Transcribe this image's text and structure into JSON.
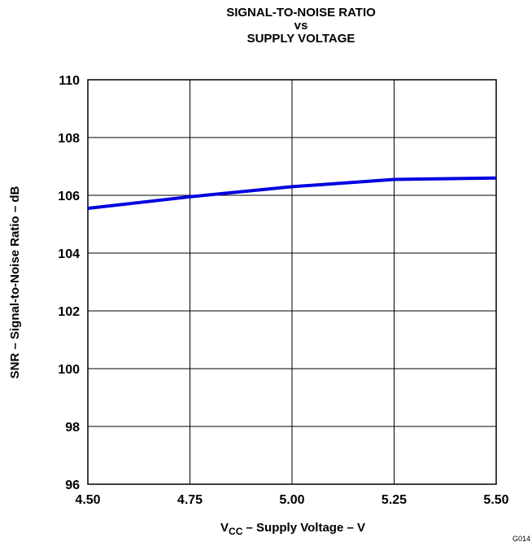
{
  "chart_data": {
    "type": "line",
    "title_lines": [
      "SIGNAL-TO-NOISE RATIO",
      "vs",
      "SUPPLY VOLTAGE"
    ],
    "xlabel_main": "V",
    "xlabel_sub": "CC",
    "xlabel_rest": " – Supply Voltage – V",
    "ylabel": "SNR – Signal-to-Noise Ratio – dB",
    "figure_code": "G014",
    "xlim": [
      4.5,
      5.5
    ],
    "ylim": [
      96,
      110
    ],
    "x_ticks": [
      "4.50",
      "4.75",
      "5.00",
      "5.25",
      "5.50"
    ],
    "y_ticks": [
      "110",
      "108",
      "106",
      "104",
      "102",
      "100",
      "98",
      "96"
    ],
    "grid": true,
    "line_color": "#0000e0",
    "series": [
      {
        "x": [
          4.5,
          4.75,
          5.0,
          5.25,
          5.5
        ],
        "values": [
          105.55,
          105.95,
          106.3,
          106.55,
          106.6
        ]
      }
    ]
  }
}
